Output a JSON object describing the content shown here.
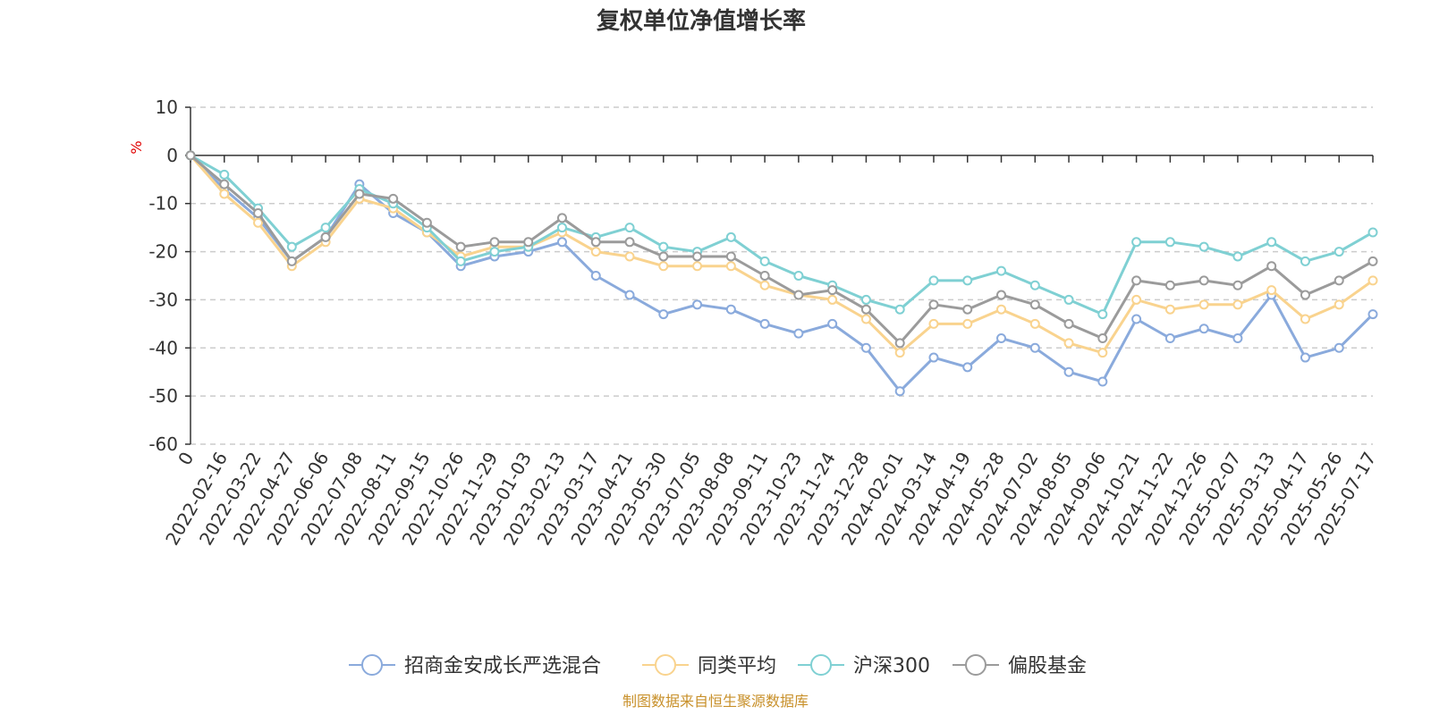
{
  "chart_data": {
    "type": "line",
    "title": "复权单位净值增长率",
    "ylabel": "%",
    "ylim": [
      -60,
      10
    ],
    "yticks": [
      10,
      0,
      -10,
      -20,
      -30,
      -40,
      -50,
      -60
    ],
    "grid": true,
    "legend_position": "bottom",
    "source": "制图数据来自恒生聚源数据库",
    "x": [
      "0",
      "2022-02-16",
      "2022-03-22",
      "2022-04-27",
      "2022-06-06",
      "2022-07-08",
      "2022-08-11",
      "2022-09-15",
      "2022-10-26",
      "2022-11-29",
      "2023-01-03",
      "2023-02-13",
      "2023-03-17",
      "2023-04-21",
      "2023-05-30",
      "2023-07-05",
      "2023-08-08",
      "2023-09-11",
      "2023-10-23",
      "2023-11-24",
      "2023-12-28",
      "2024-02-01",
      "2024-03-14",
      "2024-04-19",
      "2024-05-28",
      "2024-07-02",
      "2024-08-05",
      "2024-09-06",
      "2024-10-21",
      "2024-11-22",
      "2024-12-26",
      "2025-02-07",
      "2025-03-13",
      "2025-04-17",
      "2025-05-26",
      "2025-07-17"
    ],
    "series": [
      {
        "name": "招商金安成长严选混合",
        "color": "#8aaadc",
        "values": [
          0,
          -7,
          -13,
          -22,
          -17,
          -6,
          -12,
          -16,
          -23,
          -21,
          -20,
          -18,
          -25,
          -29,
          -33,
          -31,
          -32,
          -35,
          -37,
          -35,
          -40,
          -49,
          -42,
          -44,
          -38,
          -40,
          -45,
          -47,
          -34,
          -38,
          -36,
          -38,
          -29,
          -42,
          -40,
          -33
        ]
      },
      {
        "name": "同类平均",
        "color": "#f9d38e",
        "values": [
          0,
          -8,
          -14,
          -23,
          -18,
          -9,
          -11,
          -16,
          -21,
          -19,
          -19,
          -16,
          -20,
          -21,
          -23,
          -23,
          -23,
          -27,
          -29,
          -30,
          -34,
          -41,
          -35,
          -35,
          -32,
          -35,
          -39,
          -41,
          -30,
          -32,
          -31,
          -31,
          -28,
          -34,
          -31,
          -26
        ]
      },
      {
        "name": "沪深300",
        "color": "#7fd0d3",
        "values": [
          0,
          -4,
          -11,
          -19,
          -15,
          -7,
          -10,
          -15,
          -22,
          -20,
          -19,
          -15,
          -17,
          -15,
          -19,
          -20,
          -17,
          -22,
          -25,
          -27,
          -30,
          -32,
          -26,
          -26,
          -24,
          -27,
          -30,
          -33,
          -18,
          -18,
          -19,
          -21,
          -18,
          -22,
          -20,
          -16
        ]
      },
      {
        "name": "偏股基金",
        "color": "#9b9b9b",
        "values": [
          0,
          -6,
          -12,
          -22,
          -17,
          -8,
          -9,
          -14,
          -19,
          -18,
          -18,
          -13,
          -18,
          -18,
          -21,
          -21,
          -21,
          -25,
          -29,
          -28,
          -32,
          -39,
          -31,
          -32,
          -29,
          -31,
          -35,
          -38,
          -26,
          -27,
          -26,
          -27,
          -23,
          -29,
          -26,
          -22
        ]
      }
    ]
  }
}
